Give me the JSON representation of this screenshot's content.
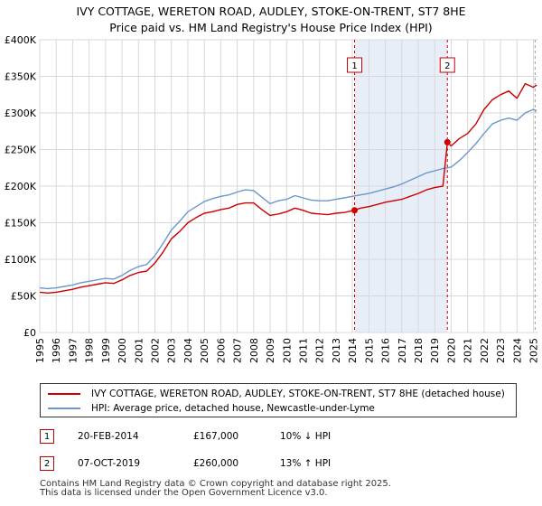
{
  "title_line1": "IVY COTTAGE, WERETON ROAD, AUDLEY, STOKE-ON-TRENT, ST7 8HE",
  "title_line2": "Price paid vs. HM Land Registry's House Price Index (HPI)",
  "colors": {
    "property": "#cc0000",
    "hpi": "#6b96cf",
    "shade": "#e8eef8",
    "marker_border": "#cc0000",
    "grid": "#d8d8d8"
  },
  "chart_data": {
    "type": "line",
    "ylim": [
      0,
      400000
    ],
    "xlim": [
      1995.0,
      2025.3
    ],
    "y_ticks": [
      {
        "value": 0,
        "label": "£0"
      },
      {
        "value": 50000,
        "label": "£50K"
      },
      {
        "value": 100000,
        "label": "£100K"
      },
      {
        "value": 150000,
        "label": "£150K"
      },
      {
        "value": 200000,
        "label": "£200K"
      },
      {
        "value": 250000,
        "label": "£250K"
      },
      {
        "value": 300000,
        "label": "£300K"
      },
      {
        "value": 350000,
        "label": "£350K"
      },
      {
        "value": 400000,
        "label": "£400K"
      }
    ],
    "x_ticks": [
      "1995",
      "1996",
      "1997",
      "1998",
      "1999",
      "2000",
      "2001",
      "2002",
      "2003",
      "2004",
      "2005",
      "2006",
      "2007",
      "2008",
      "2009",
      "2010",
      "2011",
      "2012",
      "2013",
      "2014",
      "2015",
      "2016",
      "2017",
      "2018",
      "2019",
      "2020",
      "2021",
      "2022",
      "2023",
      "2024",
      "2025"
    ],
    "shaded_region": [
      2014.13,
      2019.77
    ],
    "series": [
      {
        "name": "IVY COTTAGE, WERETON ROAD, AUDLEY, STOKE-ON-TRENT, ST7 8HE (detached house)",
        "x": [
          1995.0,
          1995.5,
          1996.0,
          1996.5,
          1997.0,
          1997.5,
          1998.0,
          1998.5,
          1999.0,
          1999.5,
          2000.0,
          2000.5,
          2001.0,
          2001.5,
          2002.0,
          2002.5,
          2003.0,
          2003.5,
          2004.0,
          2004.5,
          2005.0,
          2005.5,
          2006.0,
          2006.5,
          2007.0,
          2007.5,
          2008.0,
          2008.5,
          2009.0,
          2009.5,
          2010.0,
          2010.5,
          2011.0,
          2011.5,
          2012.0,
          2012.5,
          2013.0,
          2013.5,
          2014.13,
          2014.5,
          2015.0,
          2015.5,
          2016.0,
          2016.5,
          2017.0,
          2017.5,
          2018.0,
          2018.5,
          2019.0,
          2019.5,
          2019.77,
          2020.0,
          2020.5,
          2021.0,
          2021.5,
          2022.0,
          2022.5,
          2023.0,
          2023.5,
          2024.0,
          2024.5,
          2025.0,
          2025.2
        ],
        "values": [
          55000,
          54000,
          55000,
          57000,
          59000,
          62000,
          64000,
          66000,
          68000,
          67000,
          72000,
          78000,
          82000,
          84000,
          95000,
          110000,
          128000,
          138000,
          150000,
          157000,
          163000,
          165000,
          168000,
          170000,
          175000,
          177000,
          177000,
          168000,
          160000,
          162000,
          165000,
          170000,
          167000,
          163000,
          162000,
          161000,
          163000,
          164000,
          167000,
          170000,
          172000,
          175000,
          178000,
          180000,
          182000,
          186000,
          190000,
          195000,
          198000,
          200000,
          260000,
          255000,
          265000,
          272000,
          285000,
          305000,
          318000,
          325000,
          330000,
          320000,
          340000,
          335000,
          338000
        ]
      },
      {
        "name": "HPI: Average price, detached house, Newcastle-under-Lyme",
        "x": [
          1995.0,
          1995.5,
          1996.0,
          1996.5,
          1997.0,
          1997.5,
          1998.0,
          1998.5,
          1999.0,
          1999.5,
          2000.0,
          2000.5,
          2001.0,
          2001.5,
          2002.0,
          2002.5,
          2003.0,
          2003.5,
          2004.0,
          2004.5,
          2005.0,
          2005.5,
          2006.0,
          2006.5,
          2007.0,
          2007.5,
          2008.0,
          2008.5,
          2009.0,
          2009.5,
          2010.0,
          2010.5,
          2011.0,
          2011.5,
          2012.0,
          2012.5,
          2013.0,
          2013.5,
          2014.0,
          2014.5,
          2015.0,
          2015.5,
          2016.0,
          2016.5,
          2017.0,
          2017.5,
          2018.0,
          2018.5,
          2019.0,
          2019.5,
          2020.0,
          2020.5,
          2021.0,
          2021.5,
          2022.0,
          2022.5,
          2023.0,
          2023.5,
          2024.0,
          2024.5,
          2025.0,
          2025.2
        ],
        "values": [
          61000,
          60000,
          61000,
          63000,
          65000,
          68000,
          70000,
          72000,
          74000,
          73000,
          78000,
          85000,
          90000,
          93000,
          105000,
          122000,
          140000,
          152000,
          165000,
          172000,
          179000,
          183000,
          186000,
          188000,
          192000,
          195000,
          194000,
          185000,
          176000,
          180000,
          182000,
          187000,
          184000,
          181000,
          180000,
          180000,
          182000,
          184000,
          186000,
          188000,
          190000,
          193000,
          196000,
          199000,
          203000,
          208000,
          213000,
          218000,
          221000,
          224000,
          226000,
          235000,
          246000,
          258000,
          272000,
          285000,
          290000,
          293000,
          290000,
          300000,
          305000,
          303000
        ]
      }
    ],
    "sales": [
      {
        "label": "1",
        "x": 2014.13,
        "value": 167000
      },
      {
        "label": "2",
        "x": 2019.77,
        "value": 260000
      }
    ]
  },
  "legend": {
    "property_label": "IVY COTTAGE, WERETON ROAD, AUDLEY, STOKE-ON-TRENT, ST7 8HE (detached house)",
    "hpi_label": "HPI: Average price, detached house, Newcastle-under-Lyme"
  },
  "sales_table": [
    {
      "num": "1",
      "date": "20-FEB-2014",
      "price": "£167,000",
      "hpi": "10% ↓ HPI"
    },
    {
      "num": "2",
      "date": "07-OCT-2019",
      "price": "£260,000",
      "hpi": "13% ↑ HPI"
    }
  ],
  "footer_line1": "Contains HM Land Registry data © Crown copyright and database right 2025.",
  "footer_line2": "This data is licensed under the Open Government Licence v3.0."
}
